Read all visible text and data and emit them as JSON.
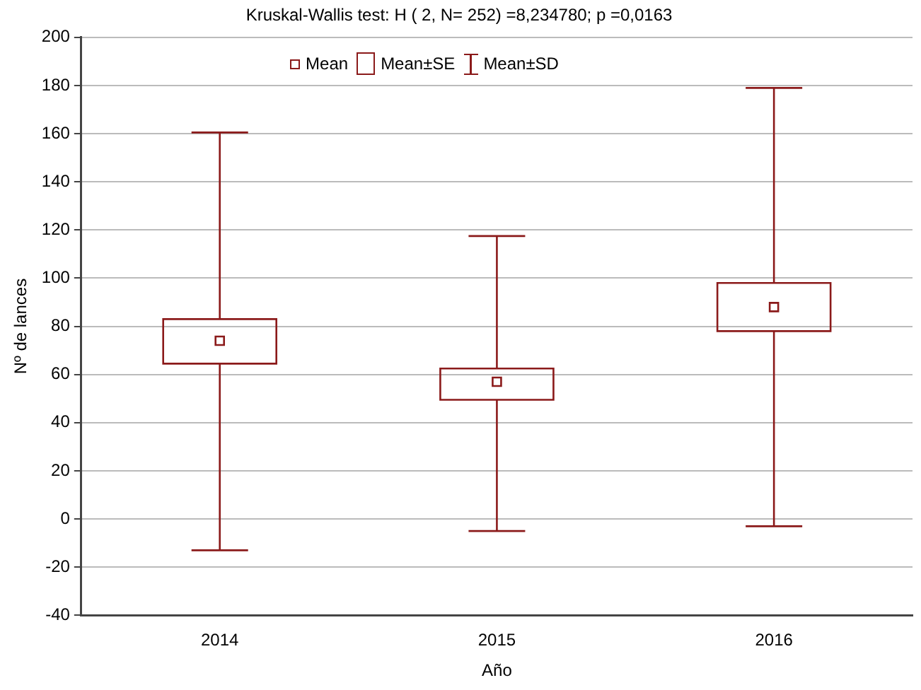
{
  "chart_data": {
    "type": "box",
    "title": "Kruskal-Wallis test: H ( 2, N= 252) =8,234780; p =0,0163",
    "xlabel": "Año",
    "ylabel": "Nº de lances",
    "categories": [
      "2014",
      "2015",
      "2016"
    ],
    "series": [
      {
        "type": "box",
        "color": "#8b1a1a",
        "boxes": [
          {
            "low": -13,
            "q1": 64.5,
            "q3": 83,
            "high": 160.5,
            "mean": 74
          },
          {
            "low": -5,
            "q1": 49.5,
            "q3": 62.5,
            "high": 117.5,
            "mean": 57
          },
          {
            "low": -3,
            "q1": 78,
            "q3": 98,
            "high": 179,
            "mean": 88
          }
        ]
      }
    ],
    "annotations": [
      "Mean",
      "Mean±SE",
      "Mean±SD"
    ],
    "ylim": [
      -40,
      200
    ],
    "yticks": [
      -40,
      -20,
      0,
      20,
      40,
      60,
      80,
      100,
      120,
      140,
      160,
      180,
      200
    ],
    "grid": "y",
    "marker": "square"
  }
}
